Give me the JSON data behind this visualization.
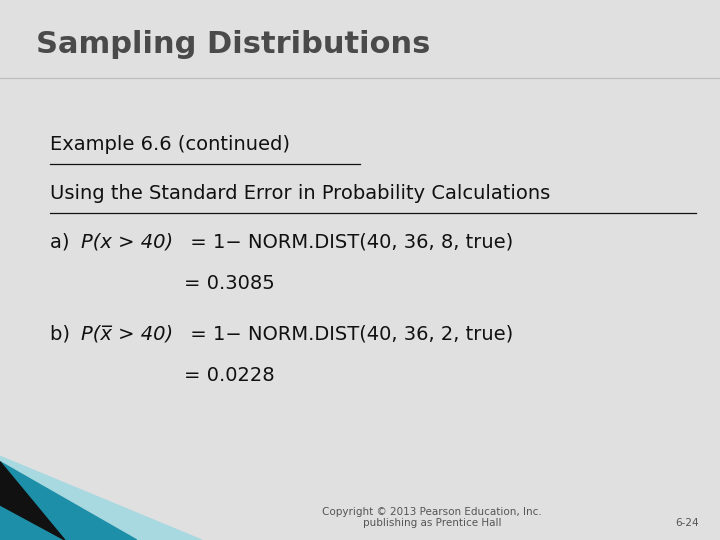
{
  "title": "Sampling Distributions",
  "title_color": "#4a4a4a",
  "title_fontsize": 22,
  "bg_color": "#e0e0e0",
  "content_bg": "#eeeeee",
  "line1": "Example 6.6 (continued)",
  "line2": "Using the Standard Error in Probability Calculations",
  "line3a_plain": "a) ",
  "line3a_italic": "P(x > 40)",
  "line3a_rest": " = 1− NORM.DIST(40, 36, 8, true)",
  "line3b": "= 0.3085",
  "line4a_plain": "b) ",
  "line4a_italic": "P(x̅ > 40)",
  "line4a_rest": " = 1− NORM.DIST(40, 36, 2, true)",
  "line4b": "= 0.0228",
  "copyright": "Copyright © 2013 Pearson Education, Inc.\npublishing as Prentice Hall",
  "page_num": "6-24",
  "underline_color": "#111111",
  "text_color": "#111111",
  "content_fontsize": 14,
  "footer_fontsize": 7.5,
  "teal_color": "#1e8fa8",
  "light_teal_color": "#a8d8e0",
  "dark_color": "#111111",
  "separator_color": "#bbbbbb"
}
